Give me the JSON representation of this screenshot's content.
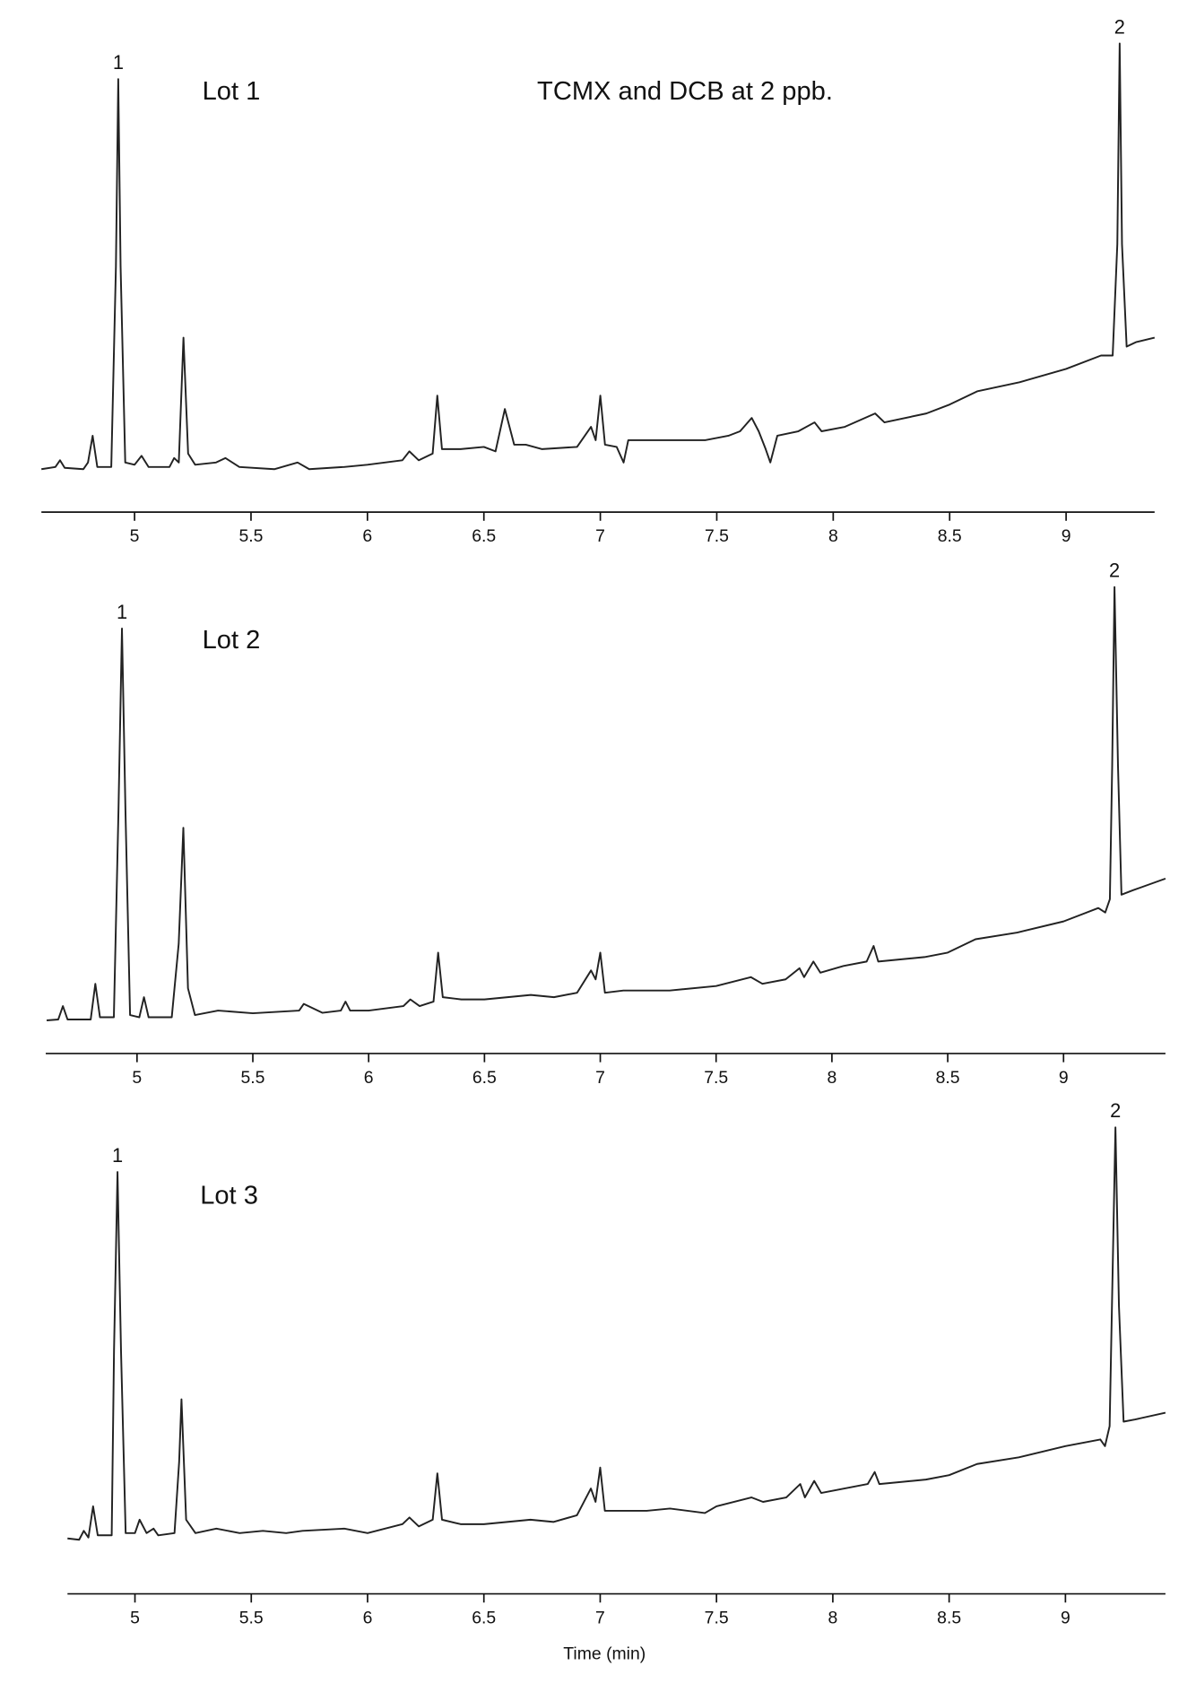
{
  "chart_data": [
    {
      "type": "line",
      "title": "Lot 1",
      "annotation": "TCMX and DCB at 2 ppb.",
      "color": "#222222",
      "peak_labels": [
        {
          "text": "1",
          "x": 4.93,
          "y": 92
        },
        {
          "text": "2",
          "x": 9.23,
          "y": 100
        }
      ],
      "xlim": [
        4.6,
        9.38
      ],
      "ylim": [
        0,
        100
      ],
      "xticks": [
        5,
        5.5,
        6,
        6.5,
        7,
        7.5,
        8,
        8.5,
        9
      ],
      "x": [
        4.6,
        4.66,
        4.68,
        4.7,
        4.78,
        4.8,
        4.82,
        4.84,
        4.9,
        4.92,
        4.93,
        4.94,
        4.96,
        5.0,
        5.03,
        5.06,
        5.15,
        5.17,
        5.19,
        5.21,
        5.23,
        5.26,
        5.35,
        5.39,
        5.45,
        5.6,
        5.7,
        5.75,
        5.9,
        6.0,
        6.15,
        6.18,
        6.22,
        6.28,
        6.3,
        6.32,
        6.4,
        6.5,
        6.55,
        6.59,
        6.63,
        6.68,
        6.75,
        6.9,
        6.96,
        6.98,
        7.0,
        7.02,
        7.07,
        7.1,
        7.12,
        7.2,
        7.3,
        7.45,
        7.55,
        7.6,
        7.65,
        7.68,
        7.71,
        7.73,
        7.76,
        7.85,
        7.92,
        7.95,
        8.05,
        8.18,
        8.22,
        8.4,
        8.5,
        8.62,
        8.8,
        9.0,
        9.15,
        9.2,
        9.22,
        9.23,
        9.24,
        9.26,
        9.3,
        9.38
      ],
      "values": [
        4.5,
        5,
        6.5,
        4.8,
        4.5,
        6,
        12,
        5,
        5,
        50,
        92,
        50,
        6,
        5.5,
        7.5,
        5,
        5,
        7,
        6,
        34,
        8,
        5.5,
        6,
        7,
        5,
        4.5,
        6,
        4.5,
        5,
        5.5,
        6.5,
        8.5,
        6.5,
        8,
        21,
        9,
        9,
        9.5,
        8.5,
        18,
        10,
        10,
        9,
        9.5,
        14,
        11,
        21,
        10,
        9.5,
        6,
        11,
        11,
        11,
        11,
        12,
        13,
        16,
        13,
        9,
        6,
        12,
        13,
        15,
        13,
        14,
        17,
        15,
        17,
        19,
        22,
        24,
        27,
        30,
        30,
        55,
        100,
        55,
        32,
        33,
        34
      ]
    },
    {
      "type": "line",
      "title": "Lot 2",
      "color": "#222222",
      "peak_labels": [
        {
          "text": "1",
          "x": 4.935,
          "y": 90.7
        },
        {
          "text": "2",
          "x": 9.22,
          "y": 100
        }
      ],
      "xlim": [
        4.606,
        9.44
      ],
      "ylim": [
        0,
        100
      ],
      "xticks": [
        5,
        5.5,
        6,
        6.5,
        7,
        7.5,
        8,
        8.5,
        9
      ],
      "x": [
        4.61,
        4.66,
        4.68,
        4.7,
        4.8,
        4.82,
        4.84,
        4.9,
        4.92,
        4.935,
        4.95,
        4.97,
        5.01,
        5.03,
        5.05,
        5.15,
        5.18,
        5.2,
        5.22,
        5.25,
        5.35,
        5.5,
        5.7,
        5.72,
        5.8,
        5.88,
        5.9,
        5.92,
        6.0,
        6.15,
        6.18,
        6.22,
        6.28,
        6.3,
        6.32,
        6.4,
        6.5,
        6.6,
        6.7,
        6.8,
        6.9,
        6.96,
        6.98,
        7.0,
        7.02,
        7.1,
        7.2,
        7.3,
        7.5,
        7.65,
        7.7,
        7.8,
        7.86,
        7.88,
        7.92,
        7.95,
        8.05,
        8.15,
        8.18,
        8.2,
        8.4,
        8.5,
        8.62,
        8.8,
        9.0,
        9.15,
        9.18,
        9.2,
        9.21,
        9.22,
        9.235,
        9.25,
        9.3,
        9.44
      ],
      "values": [
        2.8,
        3,
        6,
        3,
        3,
        11,
        3.5,
        3.5,
        50,
        90.7,
        50,
        4,
        3.5,
        8,
        3.5,
        3.5,
        20,
        46,
        10,
        4,
        5,
        4.4,
        5,
        6.5,
        4.5,
        5,
        7,
        5,
        5,
        6,
        7.5,
        6,
        7,
        18,
        8,
        7.5,
        7.5,
        8,
        8.5,
        8,
        9,
        14,
        12,
        18,
        9,
        9.5,
        9.5,
        9.5,
        10.5,
        12.5,
        11,
        12,
        14.5,
        12.5,
        16,
        13.5,
        15,
        16,
        19.5,
        16,
        17,
        18,
        21,
        22.5,
        25,
        28,
        27,
        30,
        60,
        100,
        60,
        31,
        32,
        34.6
      ]
    },
    {
      "type": "line",
      "title": "Lot 3",
      "xlabel": "Time (min)",
      "color": "#222222",
      "peak_labels": [
        {
          "text": "1",
          "x": 4.925,
          "y": 90
        },
        {
          "text": "2",
          "x": 9.215,
          "y": 100
        }
      ],
      "xlim": [
        4.71,
        9.43
      ],
      "ylim": [
        0,
        100
      ],
      "xticks": [
        5,
        5.5,
        6,
        6.5,
        7,
        7.5,
        8,
        8.5,
        9
      ],
      "x": [
        4.71,
        4.76,
        4.78,
        4.8,
        4.82,
        4.84,
        4.9,
        4.91,
        4.925,
        4.94,
        4.96,
        5.0,
        5.02,
        5.05,
        5.08,
        5.1,
        5.17,
        5.19,
        5.2,
        5.22,
        5.26,
        5.35,
        5.45,
        5.55,
        5.65,
        5.72,
        5.9,
        6.0,
        6.15,
        6.18,
        6.22,
        6.28,
        6.3,
        6.32,
        6.4,
        6.5,
        6.6,
        6.7,
        6.8,
        6.9,
        6.96,
        6.98,
        7.0,
        7.02,
        7.1,
        7.2,
        7.3,
        7.45,
        7.5,
        7.65,
        7.7,
        7.8,
        7.86,
        7.88,
        7.92,
        7.95,
        8.05,
        8.15,
        8.18,
        8.2,
        8.4,
        8.5,
        8.62,
        8.8,
        9.0,
        9.15,
        9.17,
        9.19,
        9.2,
        9.215,
        9.23,
        9.25,
        9.3,
        9.43
      ],
      "values": [
        7.8,
        7.5,
        9.5,
        8,
        15,
        8.5,
        8.5,
        50,
        90,
        50,
        9,
        9,
        12,
        9,
        10,
        8.5,
        9,
        25,
        39,
        12,
        9,
        10,
        9,
        9.5,
        9,
        9.5,
        10,
        9,
        11,
        12.5,
        10.5,
        12,
        22.4,
        12,
        11,
        11,
        11.5,
        12,
        11.5,
        13,
        19,
        16,
        23.7,
        14,
        14,
        14,
        14.5,
        13.5,
        15,
        17,
        16,
        17,
        20,
        17,
        20.7,
        18,
        19,
        20,
        22.7,
        20,
        21,
        22,
        24.5,
        26,
        28.5,
        30,
        28.5,
        33,
        60,
        100,
        60,
        34,
        34.5,
        36
      ]
    }
  ]
}
